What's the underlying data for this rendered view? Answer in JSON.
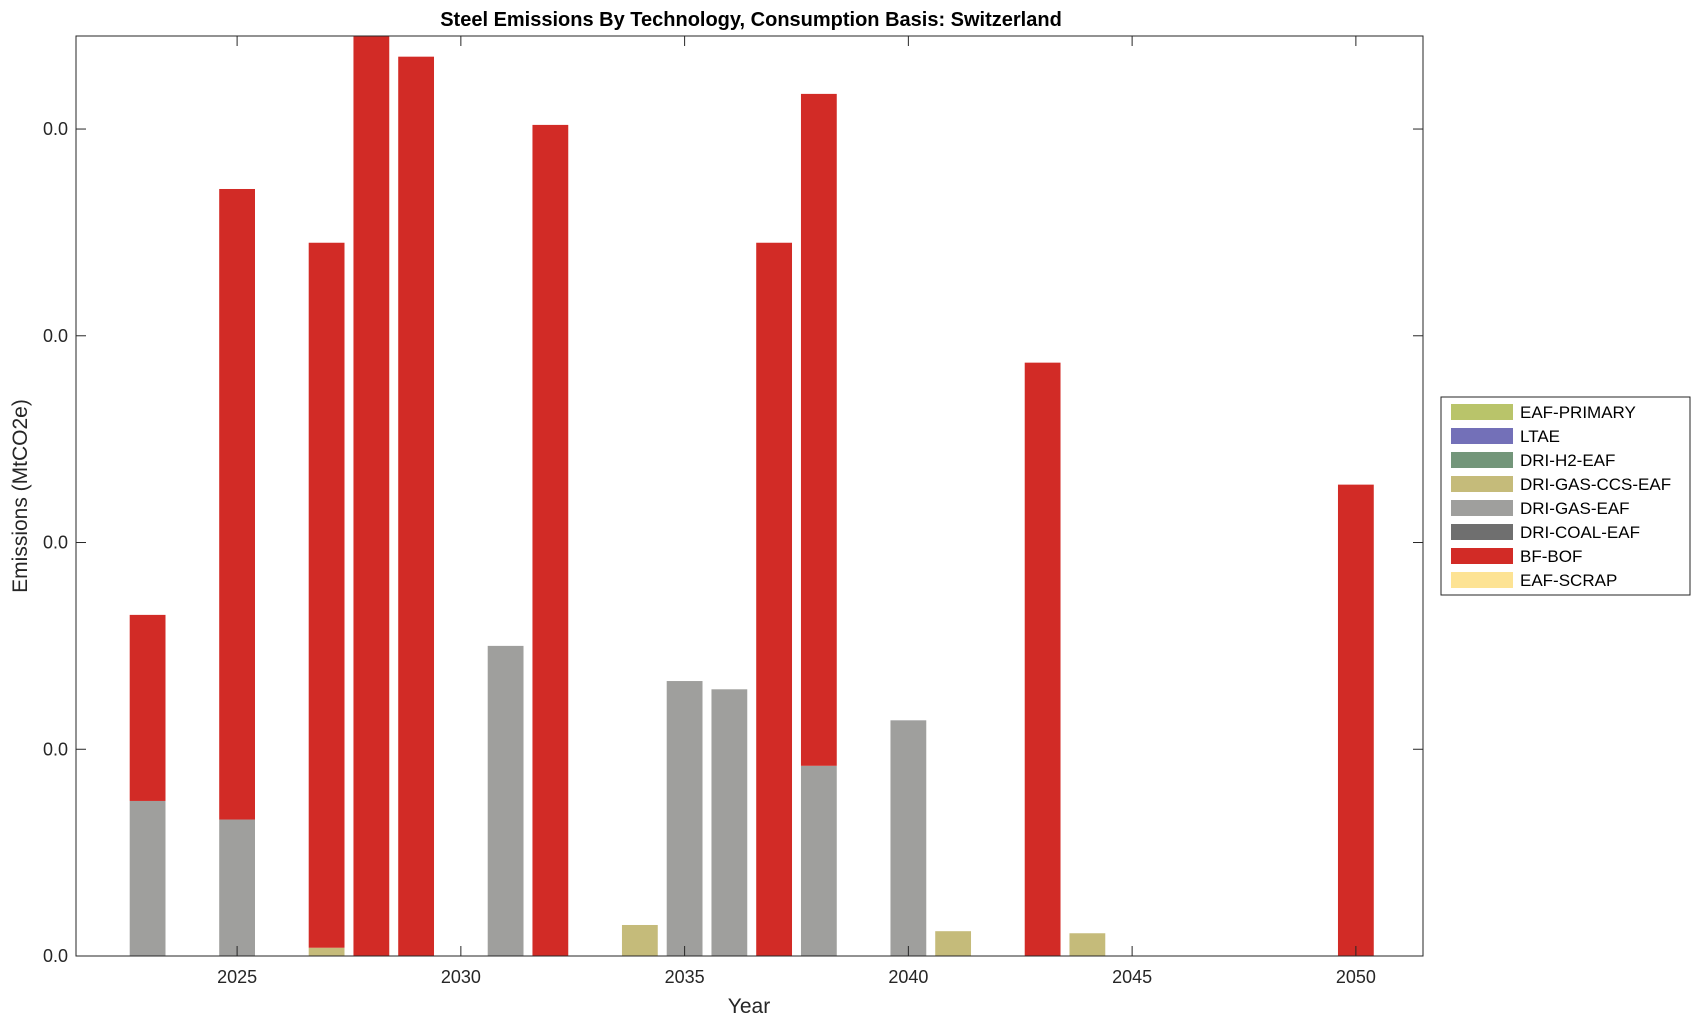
{
  "chart_data": {
    "type": "bar",
    "stacked": true,
    "title": "Steel Emissions By Technology, Consumption Basis: Switzerland",
    "xlabel": "Year",
    "ylabel": "Emissions (MtCO2e)",
    "xlim": [
      2021.4,
      2051.5
    ],
    "ylim": [
      0,
      4.45
    ],
    "xticks": [
      2025,
      2030,
      2035,
      2040,
      2045,
      2050
    ],
    "yticks": [
      {
        "value": 0,
        "label": "0.0"
      },
      {
        "value": 1,
        "label": "0.0"
      },
      {
        "value": 2,
        "label": "0.0"
      },
      {
        "value": 3,
        "label": "0.0"
      },
      {
        "value": 4,
        "label": "0.0"
      }
    ],
    "grid": false,
    "legend_position": "right",
    "x": [
      2023,
      2025,
      2027,
      2028,
      2029,
      2031,
      2032,
      2034,
      2035,
      2036,
      2037,
      2038,
      2039,
      2040,
      2041,
      2043,
      2044,
      2050
    ],
    "series": [
      {
        "name": "EAF-PRIMARY",
        "color": "#b9c46a",
        "values": [
          0,
          0,
          0,
          0,
          0,
          0,
          0,
          0,
          0,
          0,
          0,
          0,
          0,
          0,
          0,
          0,
          0,
          0
        ]
      },
      {
        "name": "LTAE",
        "color": "#7370b8",
        "values": [
          0,
          0,
          0,
          0,
          0,
          0,
          0,
          0,
          0,
          0,
          0,
          0,
          0,
          0,
          0,
          0,
          0,
          0
        ]
      },
      {
        "name": "DRI-H2-EAF",
        "color": "#73967a",
        "values": [
          0,
          0,
          0,
          0,
          0,
          0,
          0,
          0,
          0,
          0,
          0,
          0,
          0,
          0,
          0,
          0,
          0,
          0
        ]
      },
      {
        "name": "DRI-GAS-CCS-EAF",
        "color": "#c5bb7a",
        "values": [
          0,
          0,
          0.04,
          0,
          0,
          0,
          0,
          0.15,
          0,
          0,
          0,
          0,
          0,
          0,
          0.12,
          0,
          0.11,
          0
        ]
      },
      {
        "name": "DRI-GAS-EAF",
        "color": "#9f9f9d",
        "values": [
          0.75,
          0.66,
          0,
          0,
          0,
          1.5,
          0,
          0,
          1.33,
          1.29,
          0,
          0.92,
          0,
          1.14,
          0,
          0,
          0,
          0
        ]
      },
      {
        "name": "DRI-COAL-EAF",
        "color": "#6f6f6f",
        "values": [
          0,
          0,
          0,
          0,
          0,
          0,
          0,
          0,
          0,
          0,
          0,
          0,
          0,
          0,
          0,
          0,
          0,
          0
        ]
      },
      {
        "name": "BF-BOF",
        "color": "#d22b26",
        "values": [
          0.9,
          3.05,
          3.41,
          4.46,
          4.35,
          0,
          4.02,
          0,
          0,
          0,
          3.45,
          3.25,
          0,
          0,
          0,
          2.87,
          0,
          2.28
        ]
      },
      {
        "name": "EAF-SCRAP",
        "color": "#fde394",
        "values": [
          0,
          0,
          0,
          0,
          0,
          0,
          0,
          0,
          0,
          0,
          0,
          0,
          0,
          0,
          0,
          0,
          0,
          0
        ]
      }
    ]
  }
}
